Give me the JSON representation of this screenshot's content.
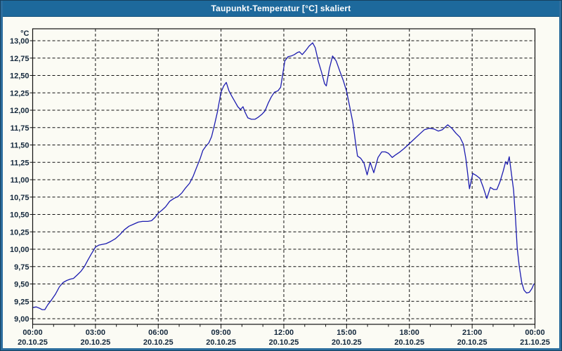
{
  "window": {
    "title": "Taupunkt-Temperatur [°C] skaliert"
  },
  "colors": {
    "titlebar_bg": "#1d699c",
    "frame": "#2d6e9e",
    "content_bg": "#fbfbf4",
    "grid": "#111111",
    "label_text": "#14283c",
    "line": "#1c1cb0"
  },
  "chart_data": {
    "type": "line",
    "title": "Taupunkt-Temperatur [°C] skaliert",
    "ylabel": "°C",
    "xlabel": "",
    "legend": "none",
    "grid": "dashed",
    "ylim": [
      9.0,
      13.0
    ],
    "y_tick_values": [
      13.0,
      12.75,
      12.5,
      12.25,
      12.0,
      11.75,
      11.5,
      11.25,
      11.0,
      10.75,
      10.5,
      10.25,
      10.0,
      9.75,
      9.5,
      9.25,
      9.0
    ],
    "y_tick_labels": [
      "13,00",
      "12,75",
      "12,50",
      "12,25",
      "12,00",
      "11,75",
      "11,50",
      "11,25",
      "11,00",
      "10,75",
      "10,50",
      "10,25",
      "10,00",
      "9,75",
      "9,50",
      "9,25",
      "9,00"
    ],
    "x_range_hours": [
      0,
      24
    ],
    "x_minor_tick_hours": 1,
    "x_major_ticks": [
      {
        "hour": 0,
        "time": "00:00",
        "date": "20.10.25"
      },
      {
        "hour": 3,
        "time": "03:00",
        "date": "20.10.25"
      },
      {
        "hour": 6,
        "time": "06:00",
        "date": "20.10.25"
      },
      {
        "hour": 9,
        "time": "09:00",
        "date": "20.10.25"
      },
      {
        "hour": 12,
        "time": "12:00",
        "date": "20.10.25"
      },
      {
        "hour": 15,
        "time": "15:00",
        "date": "20.10.25"
      },
      {
        "hour": 18,
        "time": "18:00",
        "date": "20.10.25"
      },
      {
        "hour": 21,
        "time": "21:00",
        "date": "20.10.25"
      },
      {
        "hour": 24,
        "time": "00:00",
        "date": "21.10.25"
      }
    ],
    "series": [
      {
        "name": "Taupunkt-Temperatur",
        "color": "#1c1cb0",
        "points": [
          [
            0,
            9.16
          ],
          [
            0.17,
            9.17
          ],
          [
            0.33,
            9.15
          ],
          [
            0.45,
            9.13
          ],
          [
            0.58,
            9.13
          ],
          [
            0.72,
            9.2
          ],
          [
            0.9,
            9.27
          ],
          [
            1.08,
            9.35
          ],
          [
            1.28,
            9.46
          ],
          [
            1.45,
            9.52
          ],
          [
            1.63,
            9.55
          ],
          [
            1.8,
            9.57
          ],
          [
            1.95,
            9.58
          ],
          [
            2.13,
            9.63
          ],
          [
            2.3,
            9.68
          ],
          [
            2.47,
            9.75
          ],
          [
            2.63,
            9.84
          ],
          [
            2.8,
            9.93
          ],
          [
            3,
            10.03
          ],
          [
            3.17,
            10.06
          ],
          [
            3.33,
            10.07
          ],
          [
            3.5,
            10.08
          ],
          [
            3.72,
            10.11
          ],
          [
            3.95,
            10.15
          ],
          [
            4.17,
            10.21
          ],
          [
            4.38,
            10.28
          ],
          [
            4.6,
            10.33
          ],
          [
            4.82,
            10.36
          ],
          [
            5.05,
            10.39
          ],
          [
            5.25,
            10.4
          ],
          [
            5.5,
            10.4
          ],
          [
            5.68,
            10.41
          ],
          [
            5.85,
            10.46
          ],
          [
            6,
            10.52
          ],
          [
            6.17,
            10.56
          ],
          [
            6.35,
            10.61
          ],
          [
            6.55,
            10.69
          ],
          [
            6.75,
            10.73
          ],
          [
            6.95,
            10.76
          ],
          [
            7.13,
            10.81
          ],
          [
            7.3,
            10.88
          ],
          [
            7.5,
            10.95
          ],
          [
            7.67,
            11.05
          ],
          [
            7.85,
            11.19
          ],
          [
            8,
            11.3
          ],
          [
            8.13,
            11.42
          ],
          [
            8.27,
            11.48
          ],
          [
            8.42,
            11.53
          ],
          [
            8.55,
            11.62
          ],
          [
            8.68,
            11.78
          ],
          [
            8.83,
            11.98
          ],
          [
            9,
            12.26
          ],
          [
            9.13,
            12.35
          ],
          [
            9.25,
            12.4
          ],
          [
            9.38,
            12.28
          ],
          [
            9.5,
            12.21
          ],
          [
            9.65,
            12.13
          ],
          [
            9.8,
            12.05
          ],
          [
            9.93,
            12.01
          ],
          [
            10.05,
            12.05
          ],
          [
            10.15,
            11.97
          ],
          [
            10.28,
            11.89
          ],
          [
            10.45,
            11.87
          ],
          [
            10.62,
            11.87
          ],
          [
            10.78,
            11.9
          ],
          [
            10.95,
            11.94
          ],
          [
            11.1,
            11.99
          ],
          [
            11.25,
            12.1
          ],
          [
            11.4,
            12.19
          ],
          [
            11.55,
            12.26
          ],
          [
            11.72,
            12.28
          ],
          [
            11.85,
            12.33
          ],
          [
            11.95,
            12.52
          ],
          [
            12.05,
            12.71
          ],
          [
            12.2,
            12.77
          ],
          [
            12.35,
            12.78
          ],
          [
            12.5,
            12.8
          ],
          [
            12.65,
            12.83
          ],
          [
            12.75,
            12.84
          ],
          [
            12.88,
            12.8
          ],
          [
            13.05,
            12.86
          ],
          [
            13.2,
            12.92
          ],
          [
            13.38,
            12.97
          ],
          [
            13.5,
            12.9
          ],
          [
            13.65,
            12.7
          ],
          [
            13.8,
            12.55
          ],
          [
            13.95,
            12.38
          ],
          [
            14.03,
            12.35
          ],
          [
            14.18,
            12.6
          ],
          [
            14.33,
            12.78
          ],
          [
            14.5,
            12.71
          ],
          [
            14.68,
            12.56
          ],
          [
            14.85,
            12.42
          ],
          [
            15,
            12.27
          ],
          [
            15.15,
            12.05
          ],
          [
            15.3,
            11.82
          ],
          [
            15.42,
            11.55
          ],
          [
            15.52,
            11.34
          ],
          [
            15.67,
            11.31
          ],
          [
            15.83,
            11.24
          ],
          [
            15.98,
            11.07
          ],
          [
            16.13,
            11.25
          ],
          [
            16.3,
            11.1
          ],
          [
            16.5,
            11.32
          ],
          [
            16.68,
            11.4
          ],
          [
            16.85,
            11.4
          ],
          [
            17,
            11.38
          ],
          [
            17.18,
            11.32
          ],
          [
            17.35,
            11.36
          ],
          [
            17.55,
            11.4
          ],
          [
            17.75,
            11.45
          ],
          [
            18,
            11.52
          ],
          [
            18.25,
            11.59
          ],
          [
            18.5,
            11.66
          ],
          [
            18.72,
            11.72
          ],
          [
            18.95,
            11.74
          ],
          [
            19.17,
            11.73
          ],
          [
            19.38,
            11.7
          ],
          [
            19.58,
            11.72
          ],
          [
            19.83,
            11.79
          ],
          [
            20.03,
            11.74
          ],
          [
            20.22,
            11.67
          ],
          [
            20.42,
            11.61
          ],
          [
            20.58,
            11.51
          ],
          [
            20.7,
            11.3
          ],
          [
            20.87,
            10.87
          ],
          [
            21.03,
            11.09
          ],
          [
            21.2,
            11.06
          ],
          [
            21.37,
            11.02
          ],
          [
            21.53,
            10.89
          ],
          [
            21.7,
            10.73
          ],
          [
            21.87,
            10.89
          ],
          [
            22.03,
            10.86
          ],
          [
            22.18,
            10.86
          ],
          [
            22.33,
            10.97
          ],
          [
            22.48,
            11.12
          ],
          [
            22.6,
            11.26
          ],
          [
            22.68,
            11.22
          ],
          [
            22.77,
            11.33
          ],
          [
            22.88,
            11.08
          ],
          [
            22.98,
            10.85
          ],
          [
            23.07,
            10.45
          ],
          [
            23.15,
            10.02
          ],
          [
            23.25,
            9.75
          ],
          [
            23.37,
            9.52
          ],
          [
            23.48,
            9.41
          ],
          [
            23.6,
            9.37
          ],
          [
            23.73,
            9.38
          ],
          [
            23.85,
            9.43
          ],
          [
            23.95,
            9.5
          ]
        ]
      }
    ]
  }
}
